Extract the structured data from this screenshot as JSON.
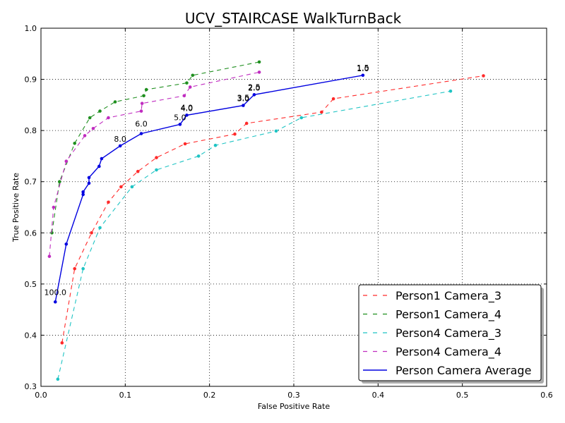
{
  "chart_data": {
    "type": "line",
    "title": "UCV_STAIRCASE WalkTurnBack",
    "xlabel": "False Positive Rate",
    "ylabel": "True Positive Rate",
    "xlim": [
      0.0,
      0.6
    ],
    "ylim": [
      0.3,
      1.0
    ],
    "xticks": [
      "0.0",
      "0.1",
      "0.2",
      "0.3",
      "0.4",
      "0.5",
      "0.6"
    ],
    "yticks": [
      "0.3",
      "0.4",
      "0.5",
      "0.6",
      "0.7",
      "0.8",
      "0.9",
      "1.0"
    ],
    "grid": true,
    "legend_position": "bottom-right",
    "series": [
      {
        "name": "Person1 Camera_3",
        "color": "#ff2a2a",
        "style": "dashed",
        "x": [
          0.025,
          0.04,
          0.06,
          0.08,
          0.095,
          0.115,
          0.137,
          0.171,
          0.23,
          0.244,
          0.333,
          0.347,
          0.525
        ],
        "y": [
          0.385,
          0.53,
          0.6,
          0.66,
          0.69,
          0.72,
          0.747,
          0.774,
          0.793,
          0.814,
          0.836,
          0.862,
          0.907
        ]
      },
      {
        "name": "Person1 Camera_4",
        "color": "#1f8f1f",
        "style": "dashed",
        "x": [
          0.013,
          0.022,
          0.04,
          0.058,
          0.07,
          0.088,
          0.122,
          0.125,
          0.173,
          0.18,
          0.259
        ],
        "y": [
          0.6,
          0.7,
          0.775,
          0.825,
          0.838,
          0.856,
          0.868,
          0.88,
          0.893,
          0.908,
          0.934
        ]
      },
      {
        "name": "Person4 Camera_3",
        "color": "#1fc4c4",
        "style": "dashed",
        "x": [
          0.02,
          0.05,
          0.07,
          0.108,
          0.137,
          0.187,
          0.207,
          0.279,
          0.309,
          0.486
        ],
        "y": [
          0.314,
          0.53,
          0.61,
          0.69,
          0.723,
          0.75,
          0.771,
          0.799,
          0.825,
          0.877
        ]
      },
      {
        "name": "Person4 Camera_4",
        "color": "#c02cc0",
        "style": "dashed",
        "x": [
          0.01,
          0.015,
          0.03,
          0.052,
          0.062,
          0.08,
          0.119,
          0.12,
          0.17,
          0.177,
          0.259
        ],
        "y": [
          0.554,
          0.65,
          0.74,
          0.79,
          0.804,
          0.825,
          0.838,
          0.853,
          0.868,
          0.885,
          0.914
        ]
      },
      {
        "name": "Person Camera Average",
        "color": "#0000e0",
        "style": "solid",
        "x": [
          0.017,
          0.03,
          0.05,
          0.05,
          0.057,
          0.057,
          0.069,
          0.072,
          0.094,
          0.119,
          0.165,
          0.173,
          0.24,
          0.253,
          0.382
        ],
        "y": [
          0.465,
          0.578,
          0.675,
          0.68,
          0.697,
          0.708,
          0.73,
          0.745,
          0.77,
          0.794,
          0.812,
          0.83,
          0.849,
          0.87,
          0.908
        ]
      }
    ],
    "annotations": [
      {
        "text": "100.0",
        "x": 0.017,
        "y": 0.465,
        "anchor": "middle",
        "dy": -10
      },
      {
        "text": "8.0",
        "x": 0.094,
        "y": 0.77,
        "anchor": "middle",
        "dy": -6
      },
      {
        "text": "6.0",
        "x": 0.119,
        "y": 0.794,
        "anchor": "middle",
        "dy": -10
      },
      {
        "text": "5.0",
        "x": 0.165,
        "y": 0.812,
        "anchor": "middle",
        "dy": -6
      },
      {
        "text": "4.0",
        "x": 0.173,
        "y": 0.83,
        "anchor": "middle",
        "dy": -6
      },
      {
        "text": "4.0",
        "x": 0.173,
        "y": 0.83,
        "anchor": "middle",
        "dy": -7
      },
      {
        "text": "3.0",
        "x": 0.24,
        "y": 0.849,
        "anchor": "middle",
        "dy": -6
      },
      {
        "text": "3.5",
        "x": 0.24,
        "y": 0.849,
        "anchor": "middle",
        "dy": -7
      },
      {
        "text": "2.0",
        "x": 0.253,
        "y": 0.87,
        "anchor": "middle",
        "dy": -6
      },
      {
        "text": "2.5",
        "x": 0.253,
        "y": 0.87,
        "anchor": "middle",
        "dy": -7
      },
      {
        "text": "1.0",
        "x": 0.382,
        "y": 0.908,
        "anchor": "middle",
        "dy": -6
      },
      {
        "text": "1.5",
        "x": 0.382,
        "y": 0.908,
        "anchor": "middle",
        "dy": -7
      }
    ]
  }
}
